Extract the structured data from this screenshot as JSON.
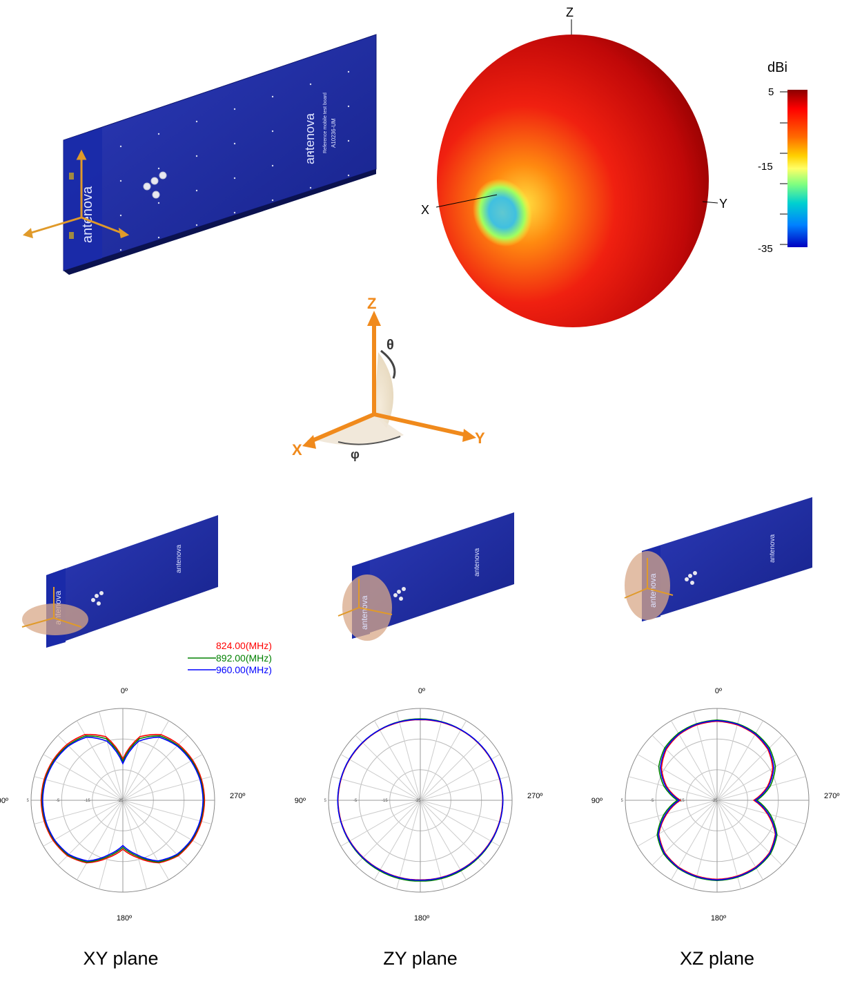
{
  "pattern_3d": {
    "axis_labels": {
      "z": "Z",
      "x": "X",
      "y": "Y"
    },
    "colorbar": {
      "unit": "dBi",
      "tick_labels": [
        "5",
        "-15",
        "-35"
      ],
      "stops": [
        "#8b0000",
        "#ff0000",
        "#ff6a00",
        "#ffd000",
        "#ffff66",
        "#80ff80",
        "#00d0d0",
        "#0080ff",
        "#0000c0"
      ]
    },
    "colors": {
      "peak": "#e01010",
      "dark": "#900000",
      "null_core": "#40c0e0",
      "null_ring": "#ffff40"
    }
  },
  "coord_diagram": {
    "axis_labels": {
      "z": "Z",
      "x": "X",
      "y": "Y"
    },
    "angle_labels": {
      "theta": "θ",
      "phi": "φ"
    },
    "axis_color": "#f08a1c"
  },
  "board": {
    "brand": "antenova",
    "model": "A10236-UM",
    "subtitle": "Reference mobile test board",
    "board_color": "#1e2a9a"
  },
  "legend": {
    "entries": [
      {
        "label": "824.00(MHz)",
        "color": "#ff0000"
      },
      {
        "label": "892.00(MHz)",
        "color": "#008000"
      },
      {
        "label": "960.00(MHz)",
        "color": "#0000ff"
      }
    ]
  },
  "plane_labels": [
    "XY plane",
    "ZY plane",
    "XZ plane"
  ],
  "chart_data": [
    {
      "type": "polar",
      "title": "XY plane",
      "angle_labels": {
        "top": "0º",
        "left": "90º",
        "right": "270º",
        "bottom": "180º"
      },
      "radial_tick_labels": [
        "-25",
        "-15",
        "-5",
        "5"
      ],
      "rlim": [
        -25,
        5
      ],
      "angles_deg": [
        0,
        15,
        30,
        45,
        60,
        75,
        90,
        105,
        120,
        135,
        150,
        165,
        180,
        195,
        210,
        225,
        240,
        255,
        270,
        285,
        300,
        315,
        330,
        345
      ],
      "series": [
        {
          "name": "824.00(MHz)",
          "color": "#ff0000",
          "values": [
            -11.5,
            -3.5,
            -0.2,
            0.8,
            1.3,
            1.6,
            1.7,
            1.6,
            1.3,
            0.6,
            -1.4,
            -5.5,
            -9.0,
            -5.5,
            -1.4,
            0.6,
            1.3,
            1.6,
            1.7,
            1.6,
            1.3,
            0.8,
            -0.2,
            -3.5
          ]
        },
        {
          "name": "892.00(MHz)",
          "color": "#008000",
          "values": [
            -12.2,
            -4.2,
            -0.7,
            0.4,
            1.0,
            1.3,
            1.4,
            1.3,
            1.0,
            0.3,
            -1.7,
            -6.0,
            -9.6,
            -6.0,
            -1.7,
            0.3,
            1.0,
            1.3,
            1.4,
            1.3,
            1.0,
            0.4,
            -0.7,
            -4.2
          ]
        },
        {
          "name": "960.00(MHz)",
          "color": "#0000ff",
          "values": [
            -13.0,
            -5.0,
            -1.2,
            0.1,
            0.7,
            1.1,
            1.2,
            1.1,
            0.8,
            0.0,
            -2.1,
            -6.5,
            -10.2,
            -6.5,
            -2.1,
            0.0,
            0.8,
            1.1,
            1.2,
            1.1,
            0.7,
            0.1,
            -1.2,
            -5.0
          ]
        }
      ]
    },
    {
      "type": "polar",
      "title": "ZY plane",
      "angle_labels": {
        "top": "0º",
        "left": "90º",
        "right": "270º",
        "bottom": "180º"
      },
      "radial_tick_labels": [
        "-25",
        "-15",
        "-5",
        "5"
      ],
      "rlim": [
        -25,
        5
      ],
      "angles_deg": [
        0,
        15,
        30,
        45,
        60,
        75,
        90,
        105,
        120,
        135,
        150,
        165,
        180,
        195,
        210,
        225,
        240,
        255,
        270,
        285,
        300,
        315,
        330,
        345
      ],
      "series": [
        {
          "name": "824.00(MHz)",
          "color": "#ff0000",
          "values": [
            1.3,
            1.4,
            1.5,
            1.6,
            1.7,
            1.8,
            1.9,
            1.8,
            1.6,
            1.4,
            1.2,
            1.1,
            1.0,
            1.1,
            1.2,
            1.4,
            1.6,
            1.8,
            1.9,
            1.8,
            1.7,
            1.6,
            1.5,
            1.4
          ]
        },
        {
          "name": "892.00(MHz)",
          "color": "#008000",
          "values": [
            1.6,
            1.6,
            1.6,
            1.7,
            1.8,
            1.9,
            2.0,
            1.9,
            1.8,
            1.7,
            1.6,
            1.5,
            1.4,
            1.5,
            1.6,
            1.7,
            1.8,
            1.9,
            2.0,
            1.9,
            1.8,
            1.7,
            1.6,
            1.6
          ]
        },
        {
          "name": "960.00(MHz)",
          "color": "#0000ff",
          "values": [
            1.4,
            1.5,
            1.6,
            1.7,
            1.8,
            1.9,
            2.0,
            1.9,
            1.7,
            1.5,
            1.3,
            1.2,
            1.1,
            1.2,
            1.3,
            1.5,
            1.7,
            1.9,
            2.0,
            1.9,
            1.8,
            1.7,
            1.6,
            1.5
          ]
        }
      ]
    },
    {
      "type": "polar",
      "title": "XZ plane",
      "angle_labels": {
        "top": "0º",
        "left": "90º",
        "right": "270º",
        "bottom": "180º"
      },
      "radial_tick_labels": [
        "-25",
        "-15",
        "-5",
        "5"
      ],
      "rlim": [
        -25,
        5
      ],
      "angles_deg": [
        0,
        15,
        30,
        45,
        60,
        75,
        90,
        105,
        120,
        135,
        150,
        165,
        180,
        195,
        210,
        225,
        240,
        255,
        270,
        285,
        300,
        315,
        330,
        345
      ],
      "series": [
        {
          "name": "824.00(MHz)",
          "color": "#ff0000",
          "values": [
            0.8,
            0.5,
            -0.2,
            -1.5,
            -4.0,
            -8.0,
            -13.0,
            -8.0,
            -3.0,
            -0.8,
            0.2,
            0.6,
            0.8,
            0.6,
            0.2,
            -0.8,
            -3.0,
            -8.0,
            -13.0,
            -8.0,
            -4.0,
            -1.5,
            -0.2,
            0.5
          ]
        },
        {
          "name": "892.00(MHz)",
          "color": "#008000",
          "values": [
            1.2,
            0.9,
            0.3,
            -0.8,
            -3.0,
            -7.0,
            -12.0,
            -7.0,
            -2.4,
            -0.3,
            0.6,
            1.0,
            1.2,
            1.0,
            0.6,
            -0.3,
            -2.4,
            -7.0,
            -12.0,
            -7.0,
            -3.0,
            -0.8,
            0.3,
            0.9
          ]
        },
        {
          "name": "960.00(MHz)",
          "color": "#0000ff",
          "values": [
            1.0,
            0.7,
            0.0,
            -1.2,
            -3.6,
            -7.6,
            -12.6,
            -7.6,
            -2.8,
            -0.6,
            0.4,
            0.8,
            1.0,
            0.8,
            0.4,
            -0.6,
            -2.8,
            -7.6,
            -12.6,
            -7.6,
            -3.6,
            -1.2,
            0.0,
            0.7
          ]
        }
      ]
    }
  ]
}
